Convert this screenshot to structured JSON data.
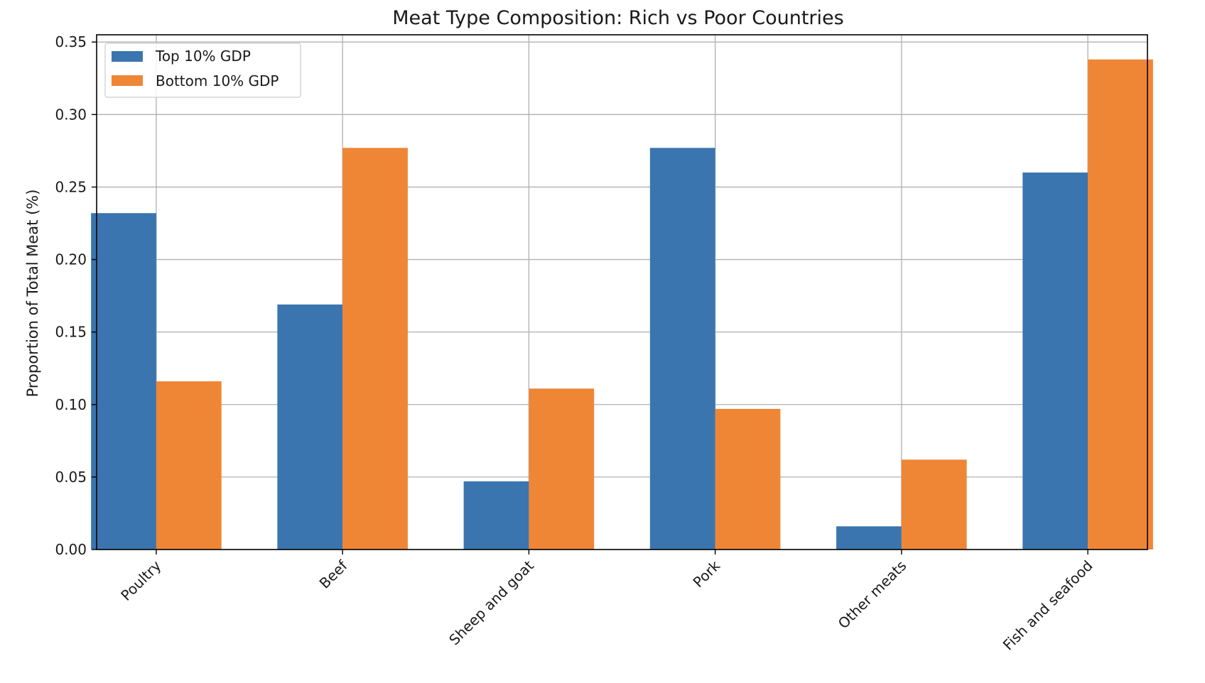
{
  "chart_data": {
    "type": "bar",
    "title": "Meat Type Composition: Rich vs Poor Countries",
    "xlabel": "",
    "ylabel": "Proportion of Total Meat (%)",
    "ylim": [
      0,
      0.355
    ],
    "yticks": [
      "0.00",
      "0.05",
      "0.10",
      "0.15",
      "0.20",
      "0.25",
      "0.30",
      "0.35"
    ],
    "ytick_values": [
      0,
      0.05,
      0.1,
      0.15,
      0.2,
      0.25,
      0.3,
      0.35
    ],
    "categories": [
      "Poultry",
      "Beef",
      "Sheep and goat",
      "Pork",
      "Other meats",
      "Fish and seafood"
    ],
    "series": [
      {
        "name": "Top 10% GDP",
        "color": "#3b75af",
        "values": [
          0.232,
          0.169,
          0.047,
          0.277,
          0.016,
          0.26
        ]
      },
      {
        "name": "Bottom 10% GDP",
        "color": "#ef8636",
        "values": [
          0.116,
          0.277,
          0.111,
          0.097,
          0.062,
          0.338
        ]
      }
    ],
    "grid": true,
    "legend_position": "top-left"
  }
}
